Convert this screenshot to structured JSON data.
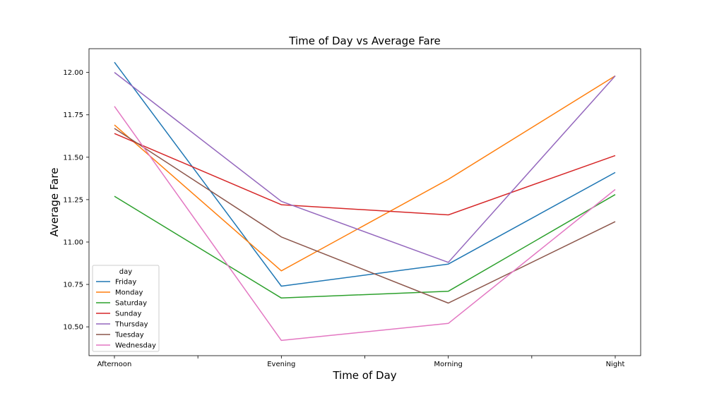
{
  "chart_data": {
    "type": "line",
    "title": "Time of Day vs Average Fare",
    "xlabel": "Time of Day",
    "ylabel": "Average Fare",
    "categories": [
      "Afternoon",
      "Evening",
      "Morning",
      "Night"
    ],
    "ylim": [
      10.33,
      12.14
    ],
    "yticks": [
      10.5,
      10.75,
      11.0,
      11.25,
      11.5,
      11.75,
      12.0
    ],
    "ytick_labels": [
      "10.50",
      "10.75",
      "11.00",
      "11.25",
      "11.50",
      "11.75",
      "12.00"
    ],
    "grid": false,
    "legend": {
      "title": "day",
      "position": "lower-left"
    },
    "series": [
      {
        "name": "Friday",
        "color": "#1f77b4",
        "values": [
          12.06,
          10.74,
          10.87,
          11.41
        ]
      },
      {
        "name": "Monday",
        "color": "#ff7f0e",
        "values": [
          11.69,
          10.83,
          11.37,
          11.98
        ]
      },
      {
        "name": "Saturday",
        "color": "#2ca02c",
        "values": [
          11.27,
          10.67,
          10.71,
          11.28
        ]
      },
      {
        "name": "Sunday",
        "color": "#d62728",
        "values": [
          11.64,
          11.22,
          11.16,
          11.51
        ]
      },
      {
        "name": "Thursday",
        "color": "#9467bd",
        "values": [
          12.0,
          11.24,
          10.88,
          11.98
        ]
      },
      {
        "name": "Tuesday",
        "color": "#8c564b",
        "values": [
          11.67,
          11.03,
          10.64,
          11.12
        ]
      },
      {
        "name": "Wednesday",
        "color": "#e377c2",
        "values": [
          11.8,
          10.42,
          10.52,
          11.31
        ]
      }
    ]
  }
}
